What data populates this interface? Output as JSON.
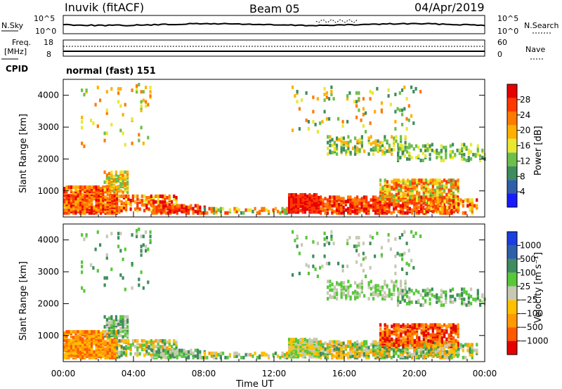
{
  "header": {
    "station": "Inuvik (fitACF)",
    "beam": "Beam 05",
    "date": "04/Apr/2019"
  },
  "top_panel": {
    "left_label": "N.Sky",
    "left_ticks": [
      "10^5",
      "10^0"
    ],
    "right_label": "N.Search",
    "right_ticks": [
      "10^5",
      "10^0"
    ]
  },
  "freq_panel": {
    "left_label_1": "Freq.",
    "left_label_2": "[MHz]",
    "left_ticks": [
      "18",
      "8"
    ],
    "right_label": "Nave",
    "right_ticks": [
      "60",
      "0"
    ]
  },
  "cpid_panel": {
    "label": "CPID",
    "value": "normal (fast) 151"
  },
  "colors": {
    "power_scale": [
      "#1a1aff",
      "#2f5fa8",
      "#3f8c5e",
      "#6cbf4a",
      "#e8e832",
      "#ffb000",
      "#ff7a00",
      "#ff3800",
      "#e60000"
    ],
    "velocity_scale": [
      "#e60000",
      "#ff5a00",
      "#ff9a00",
      "#ffc000",
      "#c8c8b4",
      "#58c83a",
      "#3f8c5e",
      "#2f5fa8",
      "#1a3fe0"
    ]
  },
  "chart_data": [
    {
      "type": "heatmap",
      "title": "Power",
      "ylabel": "Slant Range [km]",
      "xlabel": "",
      "ylim": [
        180,
        4500
      ],
      "y_ticks": [
        "1000",
        "2000",
        "3000",
        "4000"
      ],
      "y_tick_values": [
        1000,
        2000,
        3000,
        4000
      ],
      "colorbar_label": "Power [dB]",
      "colorbar_ticks": [
        "4",
        "8",
        "12",
        "16",
        "20",
        "24",
        "28"
      ],
      "colorbar_range": [
        0,
        30
      ]
    },
    {
      "type": "heatmap",
      "title": "Velocity",
      "ylabel": "Slant Range [km]",
      "xlabel": "Time UT",
      "ylim": [
        180,
        4500
      ],
      "x_ticks": [
        "00:00",
        "04:00",
        "08:00",
        "12:00",
        "16:00",
        "20:00",
        "00:00"
      ],
      "y_ticks": [
        "1000",
        "2000",
        "3000",
        "4000"
      ],
      "y_tick_values": [
        1000,
        2000,
        3000,
        4000
      ],
      "colorbar_label": "Velocity [m s⁻¹]",
      "colorbar_ticks": [
        "1000",
        "500",
        "100",
        "25",
        "−25",
        "−100",
        "−500",
        "−1000"
      ]
    }
  ]
}
